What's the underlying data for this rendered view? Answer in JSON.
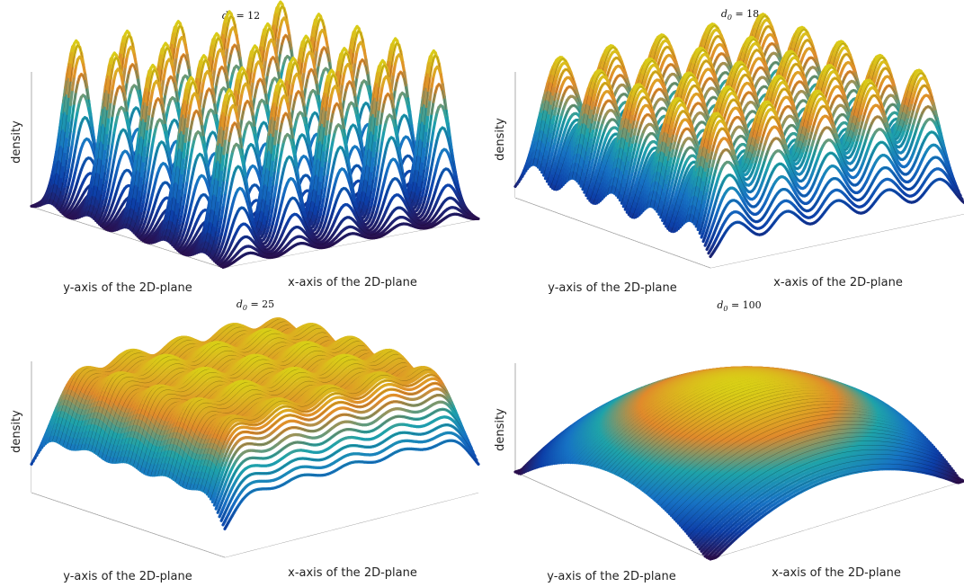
{
  "chart_data": [
    {
      "type": "surface",
      "title": "d_0 = 12",
      "title_parts": {
        "symbol": "d",
        "sub": "0",
        "rest": " = 12"
      },
      "d0": 12,
      "xlabel": "x-axis of the 2D-plane",
      "ylabel": "y-axis of the 2D-plane",
      "zlabel": "density",
      "peaks_grid": [
        5,
        5
      ],
      "grid": false
    },
    {
      "type": "surface",
      "title": "d_0 = 18",
      "title_parts": {
        "symbol": "d",
        "sub": "0",
        "rest": " = 18"
      },
      "d0": 18,
      "xlabel": "x-axis of the 2D-plane",
      "ylabel": "y-axis of the 2D-plane",
      "zlabel": "density",
      "peaks_grid": [
        5,
        5
      ],
      "grid": false
    },
    {
      "type": "surface",
      "title": "d_0 = 25",
      "title_parts": {
        "symbol": "d",
        "sub": "0",
        "rest": " = 25"
      },
      "d0": 25,
      "xlabel": "x-axis of the 2D-plane",
      "ylabel": "y-axis of the 2D-plane",
      "zlabel": "density",
      "peaks_grid": [
        5,
        5
      ],
      "grid": false
    },
    {
      "type": "surface",
      "title": "d_0 = 100",
      "title_parts": {
        "symbol": "d",
        "sub": "0",
        "rest": " = 100"
      },
      "d0": 100,
      "xlabel": "x-axis of the 2D-plane",
      "ylabel": "y-axis of the 2D-plane",
      "zlabel": "density",
      "peaks_grid": [
        5,
        5
      ],
      "grid": false
    }
  ],
  "colormap": [
    "#2b0f4e",
    "#0d3fa8",
    "#1773c4",
    "#1fa3a9",
    "#e08a2c",
    "#d9cf17"
  ]
}
